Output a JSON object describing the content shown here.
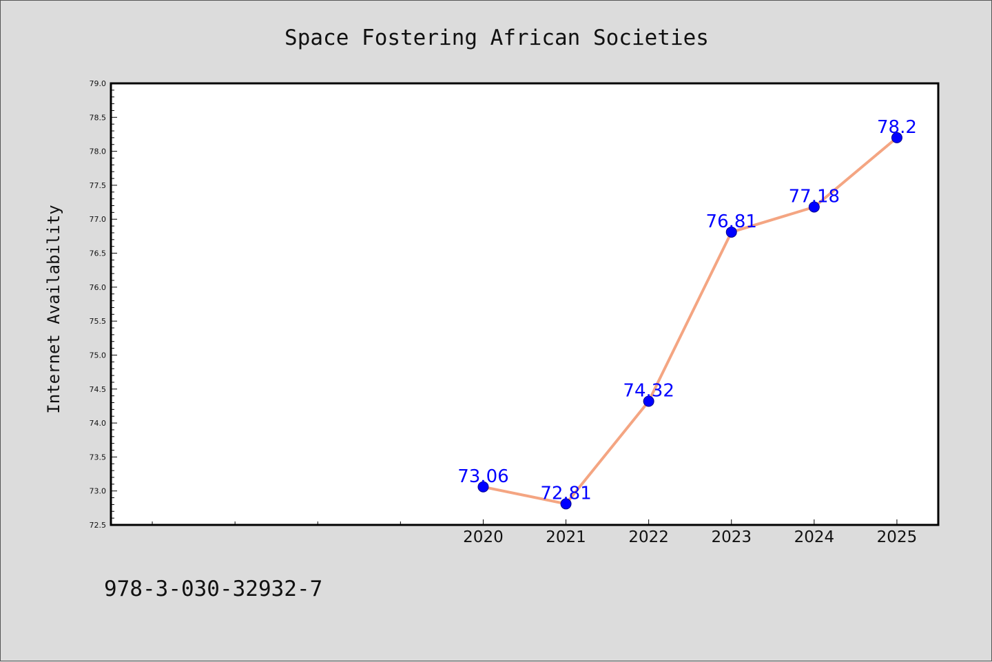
{
  "chart_data": {
    "type": "line",
    "title": "Space Fostering African Societies",
    "xlabel": "",
    "ylabel": "Internet Availability",
    "x": [
      2020,
      2021,
      2022,
      2023,
      2024,
      2025
    ],
    "x_tick_labels": [
      "2020",
      "2021",
      "2022",
      "2023",
      "2024",
      "2025"
    ],
    "x_minor_ticks": [
      2016,
      2017,
      2018,
      2019
    ],
    "xlim": [
      2015.5,
      2025.5
    ],
    "series": [
      {
        "name": "",
        "values": [
          73.06,
          72.81,
          74.32,
          76.81,
          77.18,
          78.2
        ],
        "labels": [
          "73.06",
          "72.81",
          "74.32",
          "76.81",
          "77.18",
          "78.2"
        ]
      }
    ],
    "y_ticks": [
      72.5,
      73.0,
      73.5,
      74.0,
      74.5,
      75.0,
      75.5,
      76.0,
      76.5,
      77.0,
      77.5,
      78.0,
      78.5,
      79.0
    ],
    "y_tick_labels": [
      "72.5",
      "73.0",
      "73.5",
      "74.0",
      "74.5",
      "75.0",
      "75.5",
      "76.0",
      "76.5",
      "77.0",
      "77.5",
      "78.0",
      "78.5",
      "79.0"
    ],
    "ylim": [
      72.5,
      79.0
    ],
    "grid": false,
    "legend": "none",
    "colors": {
      "line": "#f4a582",
      "marker": "#0000ff",
      "marker_edge": "#00008b",
      "data_label": "#0000ff",
      "background": "#dcdcdc",
      "plot_background": "#ffffff"
    }
  },
  "footer": {
    "isbn": "978-3-030-32932-7"
  }
}
